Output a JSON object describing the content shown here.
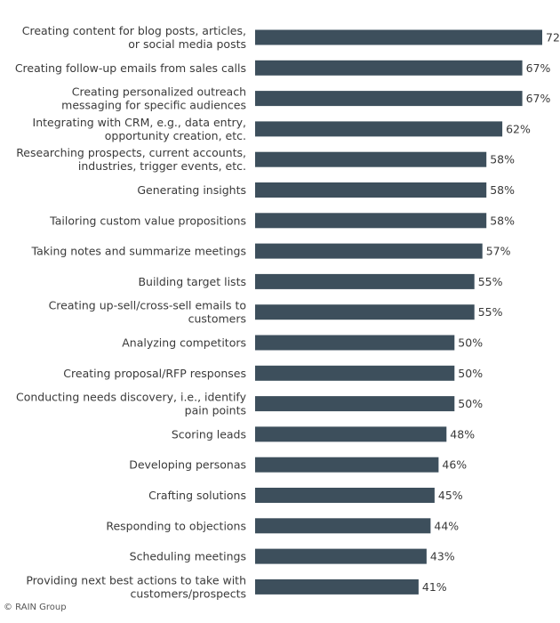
{
  "chart_data": {
    "type": "bar",
    "orientation": "horizontal",
    "categories": [
      "Creating content for blog posts, articles,\nor social media posts",
      "Creating follow-up emails from sales calls",
      "Creating personalized outreach\nmessaging for specific audiences",
      "Integrating with CRM, e.g., data entry,\nopportunity creation, etc.",
      "Researching prospects, current accounts,\nindustries, trigger events, etc.",
      "Generating insights",
      "Tailoring custom value propositions",
      "Taking notes and summarize meetings",
      "Building target lists",
      "Creating up-sell/cross-sell emails to\ncustomers",
      "Analyzing competitors",
      "Creating proposal/RFP responses",
      "Conducting needs discovery, i.e., identify\npain points",
      "Scoring leads",
      "Developing personas",
      "Crafting solutions",
      "Responding to objections",
      "Scheduling meetings",
      "Providing next best actions to take with\ncustomers/prospects"
    ],
    "values": [
      72,
      67,
      67,
      62,
      58,
      58,
      58,
      57,
      55,
      55,
      50,
      50,
      50,
      48,
      46,
      45,
      44,
      43,
      41
    ],
    "value_labels": [
      "72",
      "67%",
      "67%",
      "62%",
      "58%",
      "58%",
      "58%",
      "57%",
      "55%",
      "55%",
      "50%",
      "50%",
      "50%",
      "48%",
      "46%",
      "45%",
      "44%",
      "43%",
      "41%"
    ],
    "bar_color": "#3d4f5c",
    "xlim": [
      0,
      72
    ],
    "title": "",
    "xlabel": "",
    "ylabel": "",
    "grid": false,
    "legend": "none"
  },
  "credit": "© RAIN Group"
}
